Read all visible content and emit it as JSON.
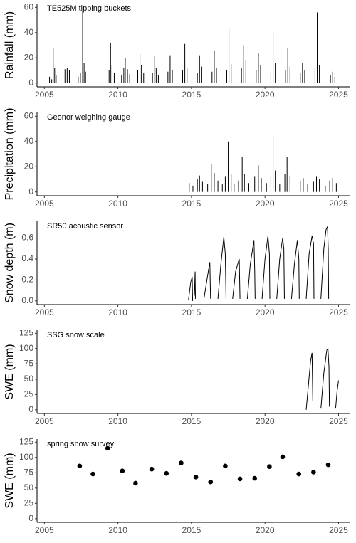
{
  "chart_data": [
    {
      "type": "bar",
      "title": "TE525M tipping buckets",
      "ylabel": "Rainfall (mm)",
      "color": "#000000",
      "x": [
        2005.35,
        2005.5,
        2005.6,
        2005.7,
        2005.8,
        2006.4,
        2006.55,
        2006.7,
        2007.3,
        2007.45,
        2007.6,
        2007.7,
        2007.8,
        2009.4,
        2009.5,
        2009.6,
        2009.75,
        2010.25,
        2010.4,
        2010.5,
        2010.65,
        2010.8,
        2011.35,
        2011.5,
        2011.6,
        2011.75,
        2012.35,
        2012.5,
        2012.6,
        2012.75,
        2013.4,
        2013.55,
        2013.7,
        2014.4,
        2014.55,
        2014.7,
        2015.4,
        2015.55,
        2015.7,
        2016.4,
        2016.55,
        2016.7,
        2017.4,
        2017.55,
        2017.7,
        2018.4,
        2018.55,
        2018.7,
        2019.4,
        2019.55,
        2019.7,
        2020.4,
        2020.55,
        2020.7,
        2021.4,
        2021.55,
        2021.7,
        2022.4,
        2022.55,
        2022.7,
        2023.4,
        2023.55,
        2023.7,
        2024.45,
        2024.6,
        2024.75
      ],
      "values": [
        5,
        3,
        28,
        12,
        6,
        11,
        12,
        10,
        5,
        8,
        57,
        16,
        9,
        10,
        32,
        14,
        8,
        6,
        12,
        20,
        11,
        7,
        10,
        23,
        14,
        8,
        8,
        22,
        12,
        6,
        9,
        22,
        10,
        10,
        31,
        12,
        8,
        22,
        13,
        9,
        26,
        12,
        10,
        43,
        15,
        12,
        30,
        18,
        10,
        24,
        14,
        9,
        41,
        16,
        10,
        28,
        13,
        8,
        16,
        10,
        12,
        56,
        14,
        6,
        9,
        5
      ],
      "xlim": [
        2004.5,
        2025.8
      ],
      "xticks": [
        2005,
        2010,
        2015,
        2020,
        2025
      ],
      "ylim": [
        -3,
        63
      ],
      "yticks": [
        0,
        20,
        40,
        60
      ]
    },
    {
      "type": "bar",
      "title": "Geonor weighing gauge",
      "ylabel": "Precipitation (mm)",
      "color": "#000000",
      "x": [
        2014.85,
        2015.1,
        2015.4,
        2015.55,
        2015.75,
        2016.1,
        2016.35,
        2016.55,
        2016.8,
        2017.1,
        2017.3,
        2017.5,
        2017.7,
        2017.9,
        2018.2,
        2018.45,
        2018.6,
        2018.9,
        2019.3,
        2019.55,
        2019.75,
        2020.1,
        2020.4,
        2020.55,
        2020.7,
        2021.0,
        2021.35,
        2021.5,
        2021.7,
        2022.4,
        2022.6,
        2022.9,
        2023.3,
        2023.5,
        2023.7,
        2024.1,
        2024.4,
        2024.6,
        2024.85
      ],
      "values": [
        7,
        5,
        10,
        13,
        8,
        6,
        22,
        15,
        9,
        6,
        12,
        40,
        14,
        6,
        9,
        28,
        14,
        7,
        12,
        21,
        11,
        7,
        12,
        45,
        17,
        6,
        14,
        28,
        13,
        9,
        11,
        6,
        8,
        12,
        10,
        5,
        9,
        11,
        7
      ],
      "xlim": [
        2004.5,
        2025.8
      ],
      "xticks": [
        2005,
        2010,
        2015,
        2020,
        2025
      ],
      "ylim": [
        -3,
        63
      ],
      "yticks": [
        0,
        20,
        40,
        60
      ]
    },
    {
      "type": "line",
      "title": "SR50 acoustic sensor",
      "ylabel": "Snow depth (m)",
      "color": "#000000",
      "x": [
        2014.8,
        2014.95,
        2015.05,
        2015.08,
        2015.1,
        2015.2,
        2015.25,
        2015.27,
        2015.5,
        2015.85,
        2016.05,
        2016.25,
        2016.3,
        2016.5,
        2016.8,
        2017.0,
        2017.2,
        2017.3,
        2017.35,
        2017.5,
        2017.8,
        2018.0,
        2018.25,
        2018.3,
        2018.5,
        2018.8,
        2019.0,
        2019.25,
        2019.3,
        2019.33,
        2019.5,
        2019.8,
        2020.0,
        2020.2,
        2020.3,
        2020.33,
        2020.5,
        2020.8,
        2021.0,
        2021.2,
        2021.28,
        2021.32,
        2021.5,
        2021.8,
        2022.0,
        2022.2,
        2022.3,
        2022.33,
        2022.5,
        2022.8,
        2023.0,
        2023.2,
        2023.3,
        2023.33,
        2023.5,
        2023.8,
        2024.0,
        2024.15,
        2024.25,
        2024.3,
        2024.33
      ],
      "values": [
        0.01,
        0.18,
        0.23,
        0.0,
        null,
        0.05,
        0.28,
        0.02,
        null,
        0.02,
        0.2,
        0.37,
        0.02,
        null,
        0.02,
        0.35,
        0.61,
        0.45,
        0.02,
        null,
        0.02,
        0.28,
        0.4,
        0.02,
        null,
        0.02,
        0.35,
        0.58,
        0.3,
        0.02,
        null,
        0.02,
        0.4,
        0.62,
        0.45,
        0.02,
        null,
        0.02,
        0.4,
        0.6,
        0.5,
        0.02,
        null,
        0.02,
        0.35,
        0.58,
        0.4,
        0.02,
        null,
        0.02,
        0.45,
        0.62,
        0.55,
        0.02,
        null,
        0.02,
        0.5,
        0.68,
        0.71,
        0.5,
        0.02
      ],
      "xlim": [
        2004.5,
        2025.8
      ],
      "xticks": [
        2005,
        2010,
        2015,
        2020,
        2025
      ],
      "ylim": [
        -0.035,
        0.76
      ],
      "yticks": [
        {
          "value": 0,
          "label": "0.0"
        },
        0.2,
        0.4,
        0.6
      ]
    },
    {
      "type": "line",
      "title": "SSG snow scale",
      "ylabel": "SWE (mm)",
      "color": "#000000",
      "x": [
        2022.8,
        2022.95,
        2023.1,
        2023.2,
        2023.25,
        2023.5,
        2023.8,
        2024.0,
        2024.2,
        2024.28,
        2024.35,
        2024.38,
        2024.6,
        2024.8,
        2024.9,
        2025.0
      ],
      "values": [
        0,
        40,
        80,
        93,
        15,
        null,
        2,
        60,
        97,
        100,
        70,
        5,
        null,
        2,
        30,
        48
      ],
      "xlim": [
        2004.5,
        2025.8
      ],
      "xticks": [
        2005,
        2010,
        2015,
        2020,
        2025
      ],
      "ylim": [
        -6,
        130
      ],
      "yticks": [
        0,
        25,
        50,
        75,
        100,
        125
      ]
    },
    {
      "type": "scatter",
      "title": "spring snow survey",
      "ylabel": "SWE (mm)",
      "color": "#000000",
      "x": [
        2007.4,
        2008.3,
        2009.3,
        2010.3,
        2011.2,
        2012.3,
        2013.3,
        2014.3,
        2015.3,
        2016.3,
        2017.3,
        2018.3,
        2019.3,
        2020.3,
        2021.2,
        2022.3,
        2023.3,
        2024.3
      ],
      "values": [
        86,
        73,
        115,
        78,
        58,
        81,
        74,
        91,
        68,
        60,
        86,
        65,
        66,
        85,
        101,
        73,
        76,
        88
      ],
      "xlim": [
        2004.5,
        2025.8
      ],
      "xticks": [
        2005,
        2010,
        2015,
        2020,
        2025
      ],
      "ylim": [
        -6,
        130
      ],
      "yticks": [
        0,
        25,
        50,
        75,
        100,
        125
      ]
    }
  ]
}
